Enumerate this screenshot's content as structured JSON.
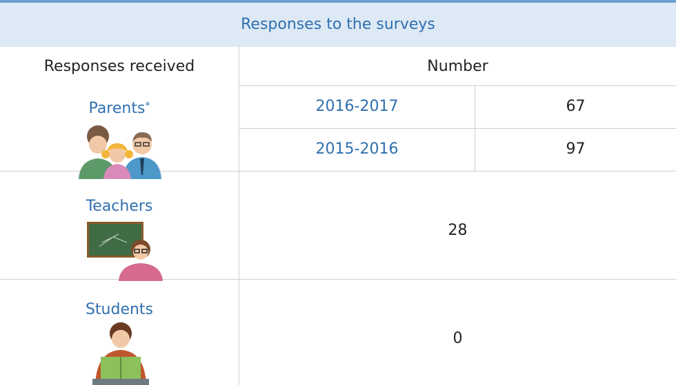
{
  "table": {
    "title": "Responses to the surveys",
    "headers": [
      "Responses received",
      "Number"
    ],
    "rows": [
      {
        "label": "Parents",
        "note": "*",
        "entries": [
          {
            "period": "2016-2017",
            "value": 67
          },
          {
            "period": "2015-2016",
            "value": 97
          }
        ]
      },
      {
        "label": "Teachers",
        "value": 28
      },
      {
        "label": "Students",
        "value": 0
      }
    ]
  }
}
